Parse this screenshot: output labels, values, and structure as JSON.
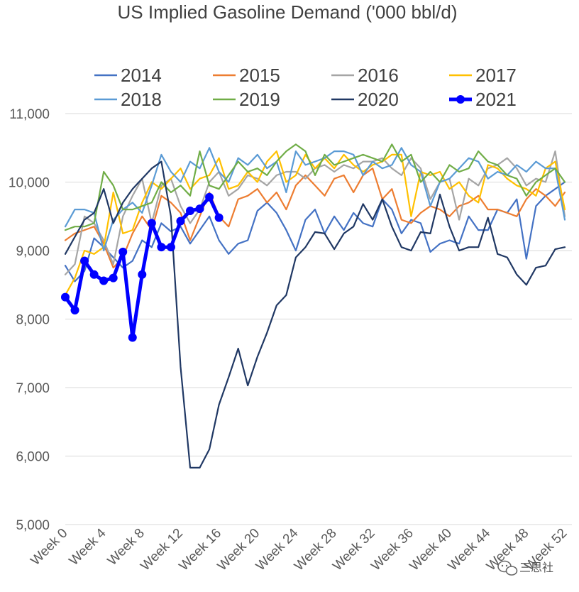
{
  "chart_data": {
    "type": "line",
    "title": "US Implied Gasoline Demand ('000 bbl/d)",
    "xlabel": "",
    "ylabel": "",
    "ylim": [
      5000,
      11000
    ],
    "yticks": [
      5000,
      6000,
      7000,
      8000,
      9000,
      10000,
      11000
    ],
    "ytick_labels": [
      "5,000",
      "6,000",
      "7,000",
      "8,000",
      "9,000",
      "10,000",
      "11,000"
    ],
    "xlim": [
      0,
      52
    ],
    "xtick_values": [
      0,
      4,
      8,
      12,
      16,
      20,
      24,
      28,
      32,
      36,
      40,
      44,
      48,
      52
    ],
    "xtick_labels": [
      "Week 0",
      "Week 4",
      "Week 8",
      "Week 12",
      "Week 16",
      "Week 20",
      "Week 24",
      "Week 28",
      "Week 32",
      "Week 36",
      "Week 40",
      "Week 44",
      "Week 48",
      "Week 52"
    ],
    "grid": "horizontal",
    "legend_position": "top",
    "series": [
      {
        "name": "2014",
        "color": "#4472c4",
        "marker": false,
        "values": [
          8780,
          8550,
          8700,
          9180,
          9050,
          8900,
          8750,
          8850,
          9150,
          9050,
          9400,
          9280,
          9350,
          9100,
          9300,
          9500,
          9150,
          8950,
          9100,
          9150,
          9580,
          9700,
          9550,
          9300,
          9000,
          9450,
          9600,
          9250,
          9500,
          9300,
          9550,
          9400,
          9350,
          9750,
          9600,
          9250,
          9450,
          9400,
          8980,
          9100,
          9150,
          9100,
          9500,
          9300,
          9300,
          9600,
          9550,
          9750,
          8880,
          9650,
          9800,
          9900,
          10000
        ]
      },
      {
        "name": "2015",
        "color": "#ed7d31",
        "marker": false,
        "values": [
          9150,
          9250,
          9300,
          9350,
          9100,
          8750,
          8900,
          9250,
          9500,
          9300,
          9800,
          9700,
          9550,
          9150,
          9500,
          9850,
          9500,
          9350,
          9750,
          9800,
          9900,
          9700,
          9850,
          9600,
          9950,
          10100,
          9950,
          9800,
          10050,
          10100,
          9850,
          10100,
          10200,
          9750,
          9900,
          9450,
          9400,
          9550,
          9650,
          9600,
          9500,
          9650,
          9700,
          9800,
          9600,
          9600,
          9550,
          9500,
          9750,
          9900,
          9800,
          9650,
          9850
        ]
      },
      {
        "name": "2016",
        "color": "#a5a5a5",
        "marker": false,
        "values": [
          8650,
          8800,
          9500,
          9400,
          9150,
          8800,
          9500,
          9800,
          10050,
          9400,
          9950,
          10050,
          9650,
          9400,
          9600,
          10000,
          10150,
          9800,
          9900,
          10100,
          10050,
          9950,
          10100,
          10150,
          10150,
          10050,
          10200,
          10250,
          10150,
          10250,
          10200,
          10300,
          10300,
          10350,
          10200,
          10100,
          10350,
          10200,
          9750,
          10000,
          10050,
          9450,
          10050,
          9950,
          10200,
          10250,
          10350,
          10200,
          9950,
          10050,
          10000,
          10450,
          9500
        ]
      },
      {
        "name": "2017",
        "color": "#ffc000",
        "marker": false,
        "values": [
          8350,
          8600,
          9000,
          8950,
          9050,
          9850,
          9250,
          9300,
          9700,
          10000,
          9900,
          10050,
          10200,
          9900,
          10050,
          10100,
          10350,
          9900,
          9950,
          10150,
          10000,
          10300,
          10450,
          10000,
          10100,
          10400,
          10200,
          10350,
          10200,
          10400,
          10250,
          10150,
          10250,
          10300,
          10400,
          10400,
          9500,
          10150,
          10100,
          10150,
          9900,
          10000,
          9800,
          9700,
          10250,
          10200,
          10050,
          9950,
          9900,
          9800,
          10200,
          10300,
          9600
        ]
      },
      {
        "name": "2018",
        "color": "#5b9bd5",
        "marker": false,
        "values": [
          9350,
          9600,
          9600,
          9550,
          9000,
          9450,
          9600,
          9700,
          9550,
          9950,
          10400,
          10150,
          10000,
          10300,
          10200,
          10500,
          10150,
          10000,
          10350,
          10250,
          10400,
          10200,
          10300,
          9850,
          10450,
          10250,
          10300,
          10350,
          10450,
          10450,
          10400,
          10100,
          10300,
          10200,
          10250,
          10500,
          10250,
          10150,
          9650,
          10000,
          10050,
          10200,
          10350,
          10300,
          10050,
          10150,
          10100,
          10250,
          10150,
          10300,
          10200,
          10200,
          9450
        ]
      },
      {
        "name": "2019",
        "color": "#70ad47",
        "marker": false,
        "values": [
          9300,
          9350,
          9350,
          9400,
          10150,
          9950,
          9600,
          9600,
          9650,
          9700,
          10000,
          9850,
          9950,
          9800,
          10450,
          9950,
          9900,
          10100,
          10300,
          10150,
          10200,
          10100,
          10300,
          10450,
          10550,
          10450,
          10100,
          10400,
          10250,
          10300,
          10350,
          10400,
          10350,
          10300,
          10550,
          10300,
          10400,
          10000,
          10150,
          10000,
          10250,
          10150,
          10200,
          10450,
          10300,
          10250,
          10100,
          10050,
          9800,
          10000,
          10100,
          10200,
          10000
        ]
      },
      {
        "name": "2020",
        "color": "#203864",
        "marker": false,
        "values": [
          8950,
          9200,
          9450,
          9550,
          9900,
          9400,
          9700,
          9900,
          10050,
          10200,
          10300,
          9500,
          7300,
          5830,
          5830,
          6100,
          6750,
          7150,
          7570,
          7030,
          7450,
          7800,
          8200,
          8350,
          8900,
          9050,
          9270,
          9250,
          9020,
          9250,
          9350,
          9680,
          9450,
          9750,
          9350,
          9050,
          9000,
          9270,
          9250,
          9820,
          9350,
          9000,
          9050,
          9050,
          9480,
          8950,
          8900,
          8650,
          8500,
          8750,
          8780,
          9020,
          9050
        ]
      },
      {
        "name": "2021",
        "color": "#0000ff",
        "marker": true,
        "values": [
          8320,
          8130,
          8850,
          8650,
          8560,
          8600,
          8980,
          7730,
          8650,
          9400,
          9050,
          9050,
          9430,
          9580,
          9610,
          9780,
          9480
        ]
      }
    ]
  },
  "watermark": {
    "icon": "wechat-icon",
    "text": "三思社"
  }
}
